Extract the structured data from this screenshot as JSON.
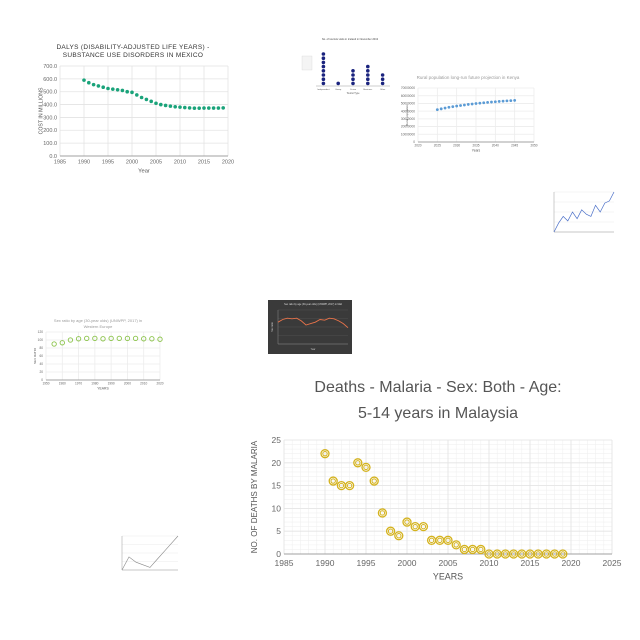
{
  "charts": [
    {
      "id": "c1",
      "type": "scatter",
      "title": "DALYS (DISABILITY-ADJUSTED LIFE YEARS) - SUBSTANCE USE DISORDERS IN MEXICO",
      "title_lines": [
        "DALYS (DISABILITY-ADJUSTED LIFE YEARS) -",
        "SUBSTANCE USE DISORDERS IN MEXICO"
      ],
      "xlabel": "Year",
      "ylabel": "COST IN MILLIONS",
      "xlim": [
        1985,
        2020
      ],
      "ylim": [
        0,
        700
      ],
      "xticks": [
        1985,
        1990,
        1995,
        2000,
        2005,
        2010,
        2015,
        2020
      ],
      "yticks": [
        0,
        100,
        200,
        300,
        400,
        500,
        600,
        700
      ],
      "ytick_labels": [
        "0.0",
        "100.0",
        "200.0",
        "300.0",
        "400.0",
        "500.0",
        "600.0",
        "700.0"
      ],
      "color": "#1aa37a",
      "x": [
        1990,
        1991,
        1992,
        1993,
        1994,
        1995,
        1996,
        1997,
        1998,
        1999,
        2000,
        2001,
        2002,
        2003,
        2004,
        2005,
        2006,
        2007,
        2008,
        2009,
        2010,
        2011,
        2012,
        2013,
        2014,
        2015,
        2016,
        2017,
        2018,
        2019
      ],
      "y": [
        590,
        570,
        555,
        545,
        535,
        525,
        520,
        515,
        510,
        500,
        495,
        475,
        455,
        440,
        425,
        410,
        400,
        393,
        388,
        383,
        380,
        377,
        374,
        372,
        372,
        373,
        373,
        373,
        373,
        374
      ]
    },
    {
      "id": "c2",
      "type": "dot_plot",
      "title": "No. of tourists visits in Iceland in November 2013",
      "xlabel": "Tourist Type",
      "ylabel": "",
      "categories": [
        "Independent",
        "Group",
        "Cruise",
        "Business",
        "Other"
      ],
      "values": [
        8,
        1,
        4,
        5,
        3
      ],
      "color": "#1a237e"
    },
    {
      "id": "c3",
      "type": "scatter",
      "title": "Rural population long-run future projection in Kenya",
      "xlabel": "Years",
      "ylabel": "Rural population",
      "xlim": [
        2020,
        2050
      ],
      "ylim": [
        0,
        70000000
      ],
      "xticks": [
        2020,
        2025,
        2030,
        2035,
        2040,
        2045,
        2050
      ],
      "yticks": [
        0,
        10000000,
        20000000,
        30000000,
        40000000,
        50000000,
        60000000,
        70000000
      ],
      "color": "#5b9bd5",
      "x": [
        2025,
        2026,
        2027,
        2028,
        2029,
        2030,
        2031,
        2032,
        2033,
        2034,
        2035,
        2036,
        2037,
        2038,
        2039,
        2040,
        2041,
        2042,
        2043,
        2044,
        2045
      ],
      "y": [
        42000000,
        43000000,
        44000000,
        45000000,
        45800000,
        46600000,
        47300000,
        48000000,
        48700000,
        49300000,
        49900000,
        50400000,
        50900000,
        51400000,
        51800000,
        52200000,
        52600000,
        53000000,
        53300000,
        53600000,
        53900000
      ]
    },
    {
      "id": "c4",
      "type": "line",
      "title": "",
      "xlabel": "",
      "ylabel": "",
      "color": "#4a6fc8",
      "x": [
        0,
        1,
        2,
        3,
        4,
        5,
        6,
        7,
        8,
        9,
        10,
        11,
        12,
        13
      ],
      "y": [
        10,
        30,
        45,
        35,
        55,
        40,
        60,
        50,
        45,
        70,
        55,
        75,
        80,
        100
      ]
    },
    {
      "id": "c5",
      "type": "scatter",
      "title": "Sex ratio by age (30-year olds) (UNWPP, 2017) in Western Europe",
      "title_lines": [
        "Sex ratio by age (30-year olds) (UNWPP, 2017) in",
        "Western Europe"
      ],
      "xlabel": "YEARS",
      "ylabel": "SEX RATIO",
      "xlim": [
        1950,
        2020
      ],
      "ylim": [
        0,
        120
      ],
      "xticks": [
        1950,
        1960,
        1970,
        1980,
        1990,
        2000,
        2010,
        2020
      ],
      "yticks": [
        0,
        20,
        40,
        60,
        80,
        100,
        120
      ],
      "color": "#8bc34a",
      "x": [
        1955,
        1960,
        1965,
        1970,
        1975,
        1980,
        1985,
        1990,
        1995,
        2000,
        2005,
        2010,
        2015,
        2020
      ],
      "y": [
        90,
        93,
        100,
        103,
        104,
        104,
        103,
        104,
        104,
        104,
        104,
        103,
        103,
        102
      ]
    },
    {
      "id": "c6",
      "type": "line",
      "title": "Sex ratio by age (30-year olds) (UNWPP, 2017) in Mali",
      "xlabel": "Year",
      "ylabel": "Sex ratio",
      "background": "#3a3a3a",
      "color": "#e8734a",
      "x": [
        0,
        1,
        2,
        3,
        4,
        5,
        6,
        7,
        8,
        9,
        10,
        11,
        12,
        13,
        14,
        15
      ],
      "y": [
        92,
        96,
        98,
        97,
        98,
        94,
        88,
        90,
        92,
        96,
        95,
        98,
        97,
        94,
        90,
        84
      ]
    },
    {
      "id": "c7",
      "type": "line",
      "title": "",
      "xlabel": "",
      "ylabel": "",
      "color": "#888888",
      "x": [
        0,
        1,
        2,
        3,
        4,
        5,
        6,
        7,
        8
      ],
      "y": [
        20,
        45,
        35,
        30,
        25,
        40,
        55,
        70,
        85
      ]
    },
    {
      "id": "c8",
      "type": "scatter",
      "title": "Deaths - Malaria - Sex: Both - Age: 5-14 years in Malaysia",
      "title_lines": [
        "Deaths - Malaria - Sex: Both - Age:",
        "5-14 years in Malaysia"
      ],
      "xlabel": "YEARS",
      "ylabel": "NO. OF DEATHS BY MALARIA",
      "xlim": [
        1985,
        2025
      ],
      "ylim": [
        0,
        25
      ],
      "xticks": [
        1985,
        1990,
        1995,
        2000,
        2005,
        2010,
        2015,
        2020,
        2025
      ],
      "yticks": [
        0,
        5,
        10,
        15,
        20,
        25
      ],
      "color": "#d4b21c",
      "x": [
        1990,
        1991,
        1992,
        1993,
        1994,
        1995,
        1996,
        1997,
        1998,
        1999,
        2000,
        2001,
        2002,
        2003,
        2004,
        2005,
        2006,
        2007,
        2008,
        2009,
        2010,
        2011,
        2012,
        2013,
        2014,
        2015,
        2016,
        2017,
        2018,
        2019
      ],
      "y": [
        22,
        16,
        15,
        15,
        20,
        19,
        16,
        9,
        5,
        4,
        7,
        6,
        6,
        3,
        3,
        3,
        2,
        1,
        1,
        1,
        0,
        0,
        0,
        0,
        0,
        0,
        0,
        0,
        0,
        0
      ]
    }
  ]
}
